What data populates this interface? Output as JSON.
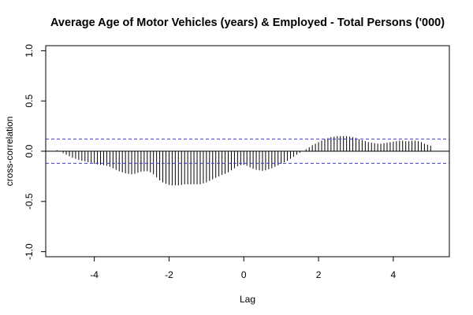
{
  "chart_data": {
    "type": "bar",
    "title": "Average Age of Motor Vehicles (years) & Employed - Total Persons ('000)",
    "xlabel": "Lag",
    "ylabel": "cross-correlation",
    "xlim": [
      -5.3,
      5.5
    ],
    "ylim": [
      -1.05,
      1.05
    ],
    "x_ticks": [
      -4,
      -2,
      0,
      2,
      4
    ],
    "x_tick_labels": [
      "-4",
      "-2",
      "0",
      "2",
      "4"
    ],
    "y_ticks": [
      -1.0,
      -0.5,
      0.0,
      0.5,
      1.0
    ],
    "y_tick_labels": [
      "-1.0",
      "-0.5",
      "0.0",
      "0.5",
      "1.0"
    ],
    "confidence_bounds": [
      0.12,
      -0.12
    ],
    "lag_step": 0.0833,
    "x": [
      -5.0,
      -4.9167,
      -4.8333,
      -4.75,
      -4.6667,
      -4.5833,
      -4.5,
      -4.4167,
      -4.3333,
      -4.25,
      -4.1667,
      -4.0833,
      -4.0,
      -3.9167,
      -3.8333,
      -3.75,
      -3.6667,
      -3.5833,
      -3.5,
      -3.4167,
      -3.3333,
      -3.25,
      -3.1667,
      -3.0833,
      -3.0,
      -2.9167,
      -2.8333,
      -2.75,
      -2.6667,
      -2.5833,
      -2.5,
      -2.4167,
      -2.3333,
      -2.25,
      -2.1667,
      -2.0833,
      -2.0,
      -1.9167,
      -1.8333,
      -1.75,
      -1.6667,
      -1.5833,
      -1.5,
      -1.4167,
      -1.3333,
      -1.25,
      -1.1667,
      -1.0833,
      -1.0,
      -0.9167,
      -0.8333,
      -0.75,
      -0.6667,
      -0.5833,
      -0.5,
      -0.4167,
      -0.3333,
      -0.25,
      -0.1667,
      -0.0833,
      0.0,
      0.0833,
      0.1667,
      0.25,
      0.3333,
      0.4167,
      0.5,
      0.5833,
      0.6667,
      0.75,
      0.8333,
      0.9167,
      1.0,
      1.0833,
      1.1667,
      1.25,
      1.3333,
      1.4167,
      1.5,
      1.5833,
      1.6667,
      1.75,
      1.8333,
      1.9167,
      2.0,
      2.0833,
      2.1667,
      2.25,
      2.3333,
      2.4167,
      2.5,
      2.5833,
      2.6667,
      2.75,
      2.8333,
      2.9167,
      3.0,
      3.0833,
      3.1667,
      3.25,
      3.3333,
      3.4167,
      3.5,
      3.5833,
      3.6667,
      3.75,
      3.8333,
      3.9167,
      4.0,
      4.0833,
      4.1667,
      4.25,
      4.3333,
      4.4167,
      4.5,
      4.5833,
      4.6667,
      4.75,
      4.8333,
      4.9167,
      5.0
    ],
    "values": [
      0.01,
      -0.005,
      -0.02,
      -0.035,
      -0.05,
      -0.065,
      -0.075,
      -0.085,
      -0.095,
      -0.1,
      -0.11,
      -0.115,
      -0.125,
      -0.13,
      -0.135,
      -0.14,
      -0.145,
      -0.155,
      -0.17,
      -0.185,
      -0.2,
      -0.21,
      -0.22,
      -0.225,
      -0.23,
      -0.225,
      -0.215,
      -0.205,
      -0.2,
      -0.2,
      -0.21,
      -0.23,
      -0.26,
      -0.29,
      -0.31,
      -0.325,
      -0.335,
      -0.34,
      -0.34,
      -0.34,
      -0.335,
      -0.33,
      -0.33,
      -0.33,
      -0.33,
      -0.33,
      -0.33,
      -0.32,
      -0.31,
      -0.295,
      -0.28,
      -0.265,
      -0.25,
      -0.235,
      -0.225,
      -0.21,
      -0.19,
      -0.17,
      -0.15,
      -0.14,
      -0.135,
      -0.145,
      -0.16,
      -0.175,
      -0.185,
      -0.19,
      -0.195,
      -0.19,
      -0.18,
      -0.17,
      -0.155,
      -0.14,
      -0.125,
      -0.11,
      -0.095,
      -0.075,
      -0.055,
      -0.035,
      -0.015,
      0.0,
      0.02,
      0.04,
      0.06,
      0.075,
      0.09,
      0.105,
      0.12,
      0.13,
      0.14,
      0.145,
      0.15,
      0.15,
      0.15,
      0.15,
      0.145,
      0.14,
      0.13,
      0.12,
      0.11,
      0.1,
      0.09,
      0.085,
      0.08,
      0.075,
      0.075,
      0.08,
      0.085,
      0.09,
      0.095,
      0.1,
      0.105,
      0.105,
      0.1,
      0.1,
      0.105,
      0.105,
      0.1,
      0.09,
      0.075,
      0.065,
      0.055
    ],
    "colors": {
      "bars": "#000000",
      "zero_line": "#000000",
      "confidence_lines": "#3b3bd4",
      "frame": "#000000"
    },
    "grid": false,
    "legend": "none"
  }
}
